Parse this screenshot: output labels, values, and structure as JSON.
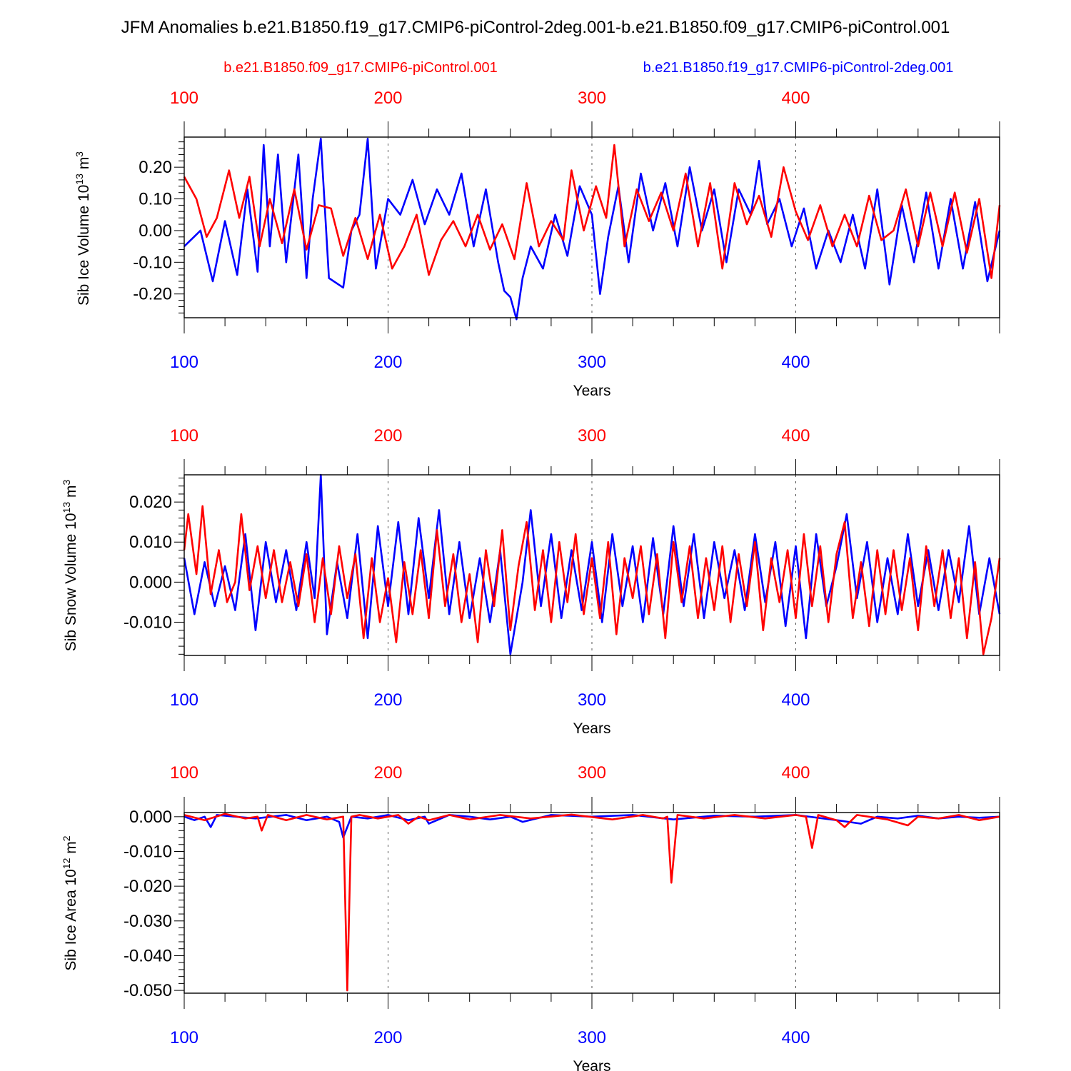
{
  "title": "JFM Anomalies b.e21.B1850.f19_g17.CMIP6-piControl-2deg.001-b.e21.B1850.f09_g17.CMIP6-piControl.001",
  "legend": {
    "red": "b.e21.B1850.f09_g17.CMIP6-piControl.001",
    "blue": "b.e21.B1850.f19_g17.CMIP6-piControl-2deg.001"
  },
  "colors": {
    "red": "#ff0000",
    "blue": "#0000ff"
  },
  "chart_data": [
    {
      "type": "line",
      "ylabel": "Sib Ice Volume 10",
      "ylabel_exp": "13",
      "ylabel_unit": " m",
      "ylabel_unit_exp": "3",
      "xlabel": "Years",
      "xlim": [
        100,
        500
      ],
      "ylim": [
        -0.275,
        0.295
      ],
      "xticks": [
        "100",
        "200",
        "300",
        "400"
      ],
      "yticks": [
        "0.20",
        "0.10",
        "0.00",
        "-0.10",
        "-0.20"
      ],
      "grid": "vertical dashed at 200, 300, 400",
      "series": [
        {
          "color": "blue",
          "x": [
            100,
            108,
            114,
            120,
            126,
            131,
            136,
            139,
            142,
            146,
            150,
            156,
            160,
            163,
            167,
            171,
            178,
            182,
            186,
            190,
            194,
            200,
            206,
            212,
            218,
            224,
            230,
            236,
            242,
            248,
            254,
            257,
            260,
            263,
            266,
            270,
            276,
            282,
            288,
            294,
            300,
            304,
            308,
            313,
            318,
            324,
            330,
            336,
            342,
            348,
            354,
            360,
            366,
            372,
            378,
            382,
            386,
            392,
            398,
            404,
            410,
            416,
            422,
            428,
            434,
            440,
            446,
            452,
            458,
            464,
            470,
            476,
            482,
            488,
            494,
            500
          ],
          "values": [
            -0.05,
            0.0,
            -0.16,
            0.03,
            -0.14,
            0.13,
            -0.13,
            0.27,
            -0.05,
            0.24,
            -0.1,
            0.24,
            -0.15,
            0.1,
            0.29,
            -0.15,
            -0.18,
            0.0,
            0.05,
            0.29,
            -0.12,
            0.1,
            0.05,
            0.16,
            0.02,
            0.13,
            0.05,
            0.18,
            -0.05,
            0.13,
            -0.1,
            -0.19,
            -0.21,
            -0.28,
            -0.15,
            -0.05,
            -0.12,
            0.05,
            -0.08,
            0.14,
            0.05,
            -0.2,
            -0.02,
            0.14,
            -0.1,
            0.18,
            0.0,
            0.15,
            -0.05,
            0.2,
            0.0,
            0.13,
            -0.1,
            0.13,
            0.05,
            0.22,
            0.02,
            0.1,
            -0.05,
            0.07,
            -0.12,
            0.0,
            -0.1,
            0.05,
            -0.12,
            0.13,
            -0.17,
            0.08,
            -0.1,
            0.12,
            -0.12,
            0.1,
            -0.12,
            0.09,
            -0.16,
            0.0
          ]
        },
        {
          "color": "red",
          "x": [
            100,
            106,
            111,
            116,
            122,
            127,
            132,
            137,
            142,
            148,
            154,
            160,
            166,
            172,
            178,
            184,
            190,
            196,
            202,
            208,
            214,
            220,
            226,
            232,
            238,
            244,
            250,
            256,
            262,
            268,
            274,
            280,
            286,
            290,
            296,
            302,
            307,
            311,
            316,
            322,
            328,
            334,
            340,
            346,
            352,
            358,
            364,
            370,
            376,
            382,
            388,
            394,
            400,
            406,
            412,
            418,
            424,
            430,
            436,
            442,
            448,
            454,
            460,
            466,
            472,
            478,
            484,
            490,
            496,
            500
          ],
          "values": [
            0.17,
            0.1,
            -0.02,
            0.04,
            0.19,
            0.04,
            0.17,
            -0.05,
            0.1,
            -0.04,
            0.13,
            -0.06,
            0.08,
            0.07,
            -0.08,
            0.04,
            -0.09,
            0.05,
            -0.12,
            -0.05,
            0.05,
            -0.14,
            -0.03,
            0.03,
            -0.05,
            0.05,
            -0.06,
            0.02,
            -0.09,
            0.15,
            -0.05,
            0.03,
            -0.03,
            0.19,
            0.0,
            0.14,
            0.04,
            0.27,
            -0.05,
            0.13,
            0.03,
            0.12,
            0.0,
            0.18,
            -0.05,
            0.15,
            -0.12,
            0.15,
            0.02,
            0.11,
            -0.02,
            0.2,
            0.06,
            -0.03,
            0.08,
            -0.05,
            0.05,
            -0.05,
            0.11,
            -0.03,
            0.0,
            0.13,
            -0.05,
            0.12,
            -0.05,
            0.12,
            -0.07,
            0.1,
            -0.15,
            0.08
          ]
        }
      ]
    },
    {
      "type": "line",
      "ylabel": "Sib Snow Volume 10",
      "ylabel_exp": "13",
      "ylabel_unit": " m",
      "ylabel_unit_exp": "3",
      "xlabel": "Years",
      "xlim": [
        100,
        500
      ],
      "ylim": [
        -0.0183,
        0.0268
      ],
      "xticks": [
        "100",
        "200",
        "300",
        "400"
      ],
      "yticks": [
        "0.020",
        "0.010",
        "0.000",
        "-0.010"
      ],
      "grid": "vertical dashed at 200, 300, 400",
      "series": [
        {
          "color": "blue",
          "x": [
            100,
            105,
            110,
            115,
            120,
            125,
            130,
            135,
            140,
            145,
            150,
            155,
            160,
            164,
            167,
            170,
            175,
            180,
            185,
            190,
            195,
            200,
            205,
            210,
            215,
            220,
            225,
            230,
            235,
            240,
            245,
            250,
            255,
            260,
            262,
            266,
            270,
            275,
            280,
            285,
            290,
            295,
            300,
            305,
            310,
            315,
            320,
            325,
            330,
            335,
            340,
            345,
            350,
            355,
            360,
            365,
            370,
            375,
            380,
            385,
            390,
            395,
            400,
            405,
            410,
            415,
            420,
            425,
            430,
            435,
            440,
            445,
            450,
            455,
            460,
            465,
            470,
            475,
            480,
            485,
            490,
            495,
            500
          ],
          "values": [
            0.006,
            -0.008,
            0.005,
            -0.006,
            0.004,
            -0.007,
            0.012,
            -0.012,
            0.01,
            -0.005,
            0.008,
            -0.007,
            0.01,
            -0.004,
            0.0268,
            -0.013,
            0.005,
            -0.009,
            0.012,
            -0.014,
            0.014,
            -0.006,
            0.015,
            -0.008,
            0.016,
            -0.004,
            0.018,
            -0.008,
            0.01,
            -0.009,
            0.006,
            -0.01,
            0.008,
            -0.018,
            -0.012,
            0.0,
            0.018,
            -0.006,
            0.012,
            -0.009,
            0.008,
            -0.007,
            0.01,
            -0.01,
            0.012,
            -0.006,
            0.009,
            -0.01,
            0.011,
            -0.008,
            0.014,
            -0.006,
            0.012,
            -0.009,
            0.01,
            -0.004,
            0.008,
            -0.007,
            0.012,
            -0.005,
            0.01,
            -0.011,
            0.009,
            -0.014,
            0.012,
            -0.006,
            0.004,
            0.017,
            -0.004,
            0.01,
            -0.01,
            0.006,
            -0.008,
            0.012,
            -0.006,
            0.008,
            -0.007,
            0.008,
            -0.005,
            0.014,
            -0.008,
            0.006,
            -0.008
          ]
        },
        {
          "color": "red",
          "x": [
            100,
            102,
            106,
            109,
            113,
            117,
            121,
            125,
            128,
            132,
            136,
            140,
            144,
            148,
            152,
            156,
            160,
            164,
            168,
            172,
            176,
            180,
            184,
            188,
            192,
            196,
            200,
            204,
            208,
            212,
            216,
            220,
            224,
            228,
            232,
            236,
            240,
            244,
            248,
            252,
            256,
            260,
            264,
            268,
            272,
            276,
            280,
            284,
            288,
            292,
            296,
            300,
            304,
            308,
            312,
            316,
            320,
            324,
            328,
            332,
            336,
            340,
            344,
            348,
            352,
            356,
            360,
            364,
            368,
            372,
            376,
            380,
            384,
            388,
            392,
            396,
            400,
            404,
            408,
            412,
            416,
            420,
            424,
            428,
            432,
            436,
            440,
            444,
            448,
            452,
            456,
            460,
            464,
            468,
            472,
            476,
            480,
            484,
            488,
            492,
            496,
            500
          ],
          "values": [
            0.008,
            0.017,
            0.002,
            0.019,
            -0.003,
            0.008,
            -0.005,
            0.0,
            0.017,
            -0.002,
            0.009,
            -0.004,
            0.008,
            -0.005,
            0.005,
            -0.006,
            0.007,
            -0.01,
            0.006,
            -0.008,
            0.009,
            -0.004,
            0.007,
            -0.014,
            0.006,
            -0.01,
            0.001,
            -0.015,
            0.005,
            -0.008,
            0.008,
            -0.009,
            0.013,
            -0.006,
            0.007,
            -0.01,
            0.002,
            -0.015,
            0.008,
            -0.006,
            0.013,
            -0.012,
            0.004,
            0.015,
            -0.007,
            0.008,
            -0.01,
            0.01,
            -0.005,
            0.012,
            -0.008,
            0.006,
            -0.009,
            0.01,
            -0.013,
            0.006,
            -0.004,
            0.009,
            -0.008,
            0.007,
            -0.014,
            0.01,
            -0.005,
            0.009,
            -0.009,
            0.006,
            -0.007,
            0.009,
            -0.01,
            0.007,
            -0.006,
            0.01,
            -0.012,
            0.006,
            -0.005,
            0.008,
            -0.009,
            0.012,
            -0.006,
            0.009,
            -0.01,
            0.007,
            0.015,
            -0.009,
            0.005,
            -0.011,
            0.008,
            -0.008,
            0.008,
            -0.007,
            0.006,
            -0.012,
            0.009,
            -0.006,
            0.008,
            -0.009,
            0.006,
            -0.014,
            0.005,
            -0.018,
            -0.009,
            0.006
          ]
        }
      ]
    },
    {
      "type": "line",
      "ylabel": "Sib Ice Area 10",
      "ylabel_exp": "12",
      "ylabel_unit": " m",
      "ylabel_unit_exp": "2",
      "xlabel": "Years",
      "xlim": [
        100,
        500
      ],
      "ylim": [
        -0.0508,
        0.0012
      ],
      "xticks": [
        "100",
        "200",
        "300",
        "400"
      ],
      "yticks": [
        "0.000",
        "-0.010",
        "-0.020",
        "-0.030",
        "-0.040",
        "-0.050"
      ],
      "grid": "vertical dashed at 200, 300, 400",
      "series": [
        {
          "color": "blue",
          "x": [
            100,
            105,
            110,
            113,
            116,
            125,
            135,
            150,
            160,
            170,
            176,
            178,
            182,
            190,
            200,
            210,
            218,
            220,
            230,
            240,
            250,
            260,
            266,
            280,
            300,
            320,
            340,
            360,
            380,
            400,
            420,
            432,
            440,
            450,
            460,
            470,
            480,
            490,
            500
          ],
          "values": [
            0.0,
            -0.001,
            0.0,
            -0.003,
            0.0005,
            0.0,
            -0.0005,
            0.0005,
            -0.001,
            0.0,
            -0.0015,
            -0.006,
            0.0,
            -0.0005,
            0.0005,
            -0.001,
            0.0,
            -0.002,
            0.0005,
            0.0,
            -0.0008,
            0.0,
            -0.0015,
            0.0005,
            0.0,
            0.0005,
            -0.0008,
            0.0003,
            0.0,
            0.0005,
            -0.001,
            -0.002,
            0.0,
            -0.0005,
            0.0003,
            -0.0005,
            0.0,
            -0.0003,
            0.0
          ]
        },
        {
          "color": "red",
          "x": [
            100,
            110,
            120,
            130,
            136,
            138,
            141,
            150,
            160,
            170,
            178,
            180,
            182,
            186,
            195,
            205,
            210,
            215,
            220,
            230,
            240,
            255,
            270,
            290,
            310,
            325,
            335,
            337,
            339,
            342,
            355,
            370,
            385,
            400,
            405,
            408,
            411,
            420,
            424,
            430,
            445,
            455,
            460,
            470,
            480,
            490,
            500
          ],
          "values": [
            0.0005,
            -0.001,
            0.0008,
            -0.0005,
            0.0,
            -0.004,
            0.0005,
            -0.001,
            0.0005,
            -0.0008,
            0.0,
            -0.05,
            0.0,
            0.0005,
            -0.0005,
            0.0005,
            -0.002,
            0.0,
            -0.001,
            0.0005,
            -0.0008,
            0.0005,
            -0.0005,
            0.0006,
            -0.0008,
            0.0005,
            -0.0005,
            0.0,
            -0.019,
            0.0005,
            -0.0005,
            0.0005,
            -0.0005,
            0.0005,
            0.0,
            -0.009,
            0.0005,
            -0.001,
            -0.003,
            0.0005,
            -0.0008,
            -0.0025,
            0.0,
            -0.0005,
            0.0005,
            -0.001,
            0.0
          ]
        }
      ]
    }
  ]
}
